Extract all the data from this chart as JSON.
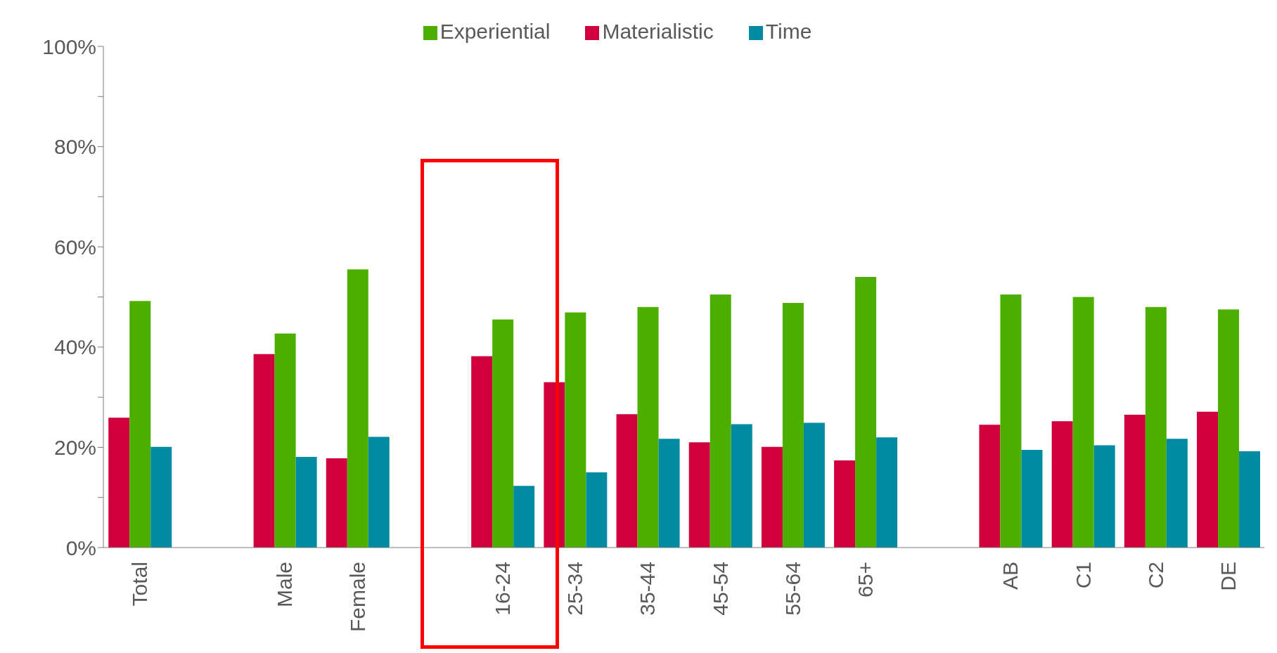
{
  "chart_data": {
    "type": "bar",
    "categories": [
      "Total",
      null,
      "Male",
      "Female",
      null,
      "16-24",
      "25-34",
      "35-44",
      "45-54",
      "55-64",
      "65+",
      null,
      "AB",
      "C1",
      "C2",
      "DE"
    ],
    "series": [
      {
        "name": "Materialistic",
        "color": "#d0003c",
        "values": [
          25.9,
          null,
          38.6,
          17.8,
          null,
          38.2,
          33.0,
          26.6,
          21.0,
          20.1,
          17.4,
          null,
          24.5,
          25.2,
          26.5,
          27.1
        ]
      },
      {
        "name": "Experiential",
        "color": "#4caf00",
        "values": [
          49.2,
          null,
          42.7,
          55.5,
          null,
          45.5,
          46.9,
          48.0,
          50.5,
          48.8,
          54.0,
          null,
          50.5,
          50.0,
          48.0,
          47.5
        ]
      },
      {
        "name": "Time",
        "color": "#008ba3",
        "values": [
          20.1,
          null,
          18.1,
          22.1,
          null,
          12.3,
          15.0,
          21.7,
          24.6,
          24.9,
          22.0,
          null,
          19.5,
          20.4,
          21.7,
          19.2
        ]
      }
    ],
    "ylim": [
      0,
      100
    ],
    "yticks": [
      {
        "value": 0,
        "label": "0%"
      },
      {
        "value": 10,
        "label": null
      },
      {
        "value": 20,
        "label": "20%"
      },
      {
        "value": 30,
        "label": null
      },
      {
        "value": 40,
        "label": "40%"
      },
      {
        "value": 50,
        "label": null
      },
      {
        "value": 60,
        "label": "60%"
      },
      {
        "value": 70,
        "label": null
      },
      {
        "value": 80,
        "label": "80%"
      },
      {
        "value": 90,
        "label": null
      },
      {
        "value": 100,
        "label": "100%"
      }
    ],
    "grid": false,
    "legend": "top"
  }
}
